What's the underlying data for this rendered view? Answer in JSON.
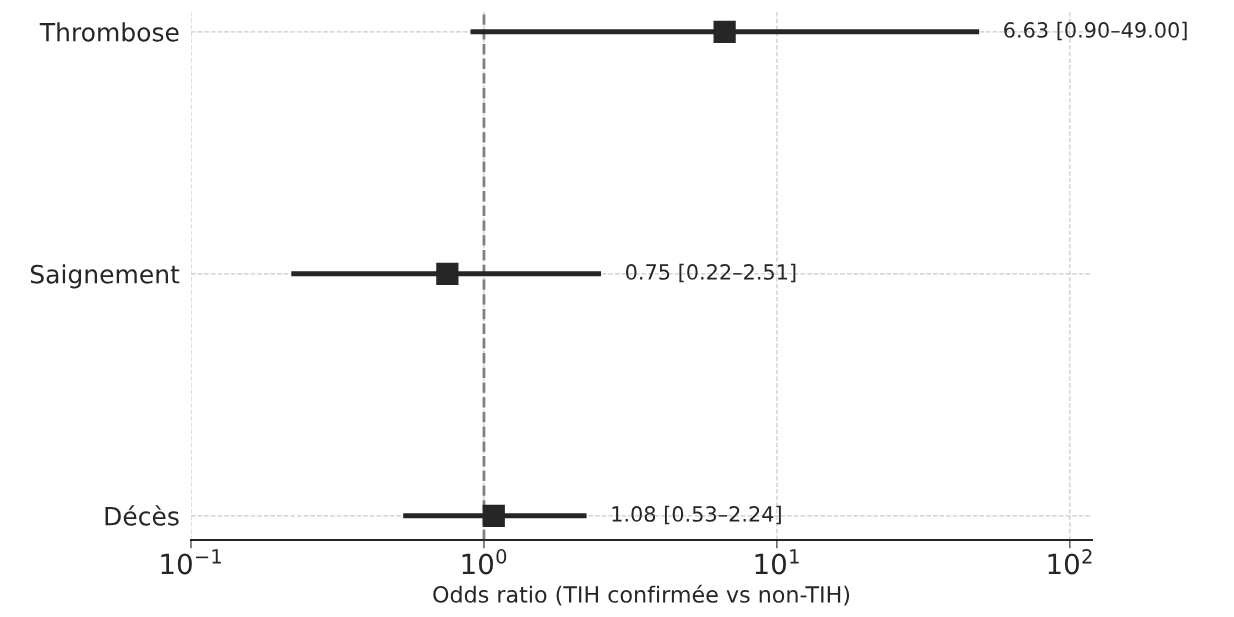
{
  "chart_data": {
    "type": "scatter",
    "orientation": "horizontal",
    "xlabel": "Odds ratio (TIH confirmée vs non-TIH)",
    "categories": [
      "Thrombose",
      "Saignement",
      "Décès"
    ],
    "values": [
      6.63,
      0.75,
      1.08
    ],
    "errors": [
      [
        0.9,
        49.0
      ],
      [
        0.22,
        2.51
      ],
      [
        0.53,
        2.24
      ]
    ],
    "annotations": [
      {
        "text": "6.63 [0.90–49.00]",
        "x": 49.0,
        "y": "Thrombose"
      },
      {
        "text": "0.75 [0.22–2.51]",
        "x": 2.51,
        "y": "Saignement"
      },
      {
        "text": "1.08 [0.53–2.24]",
        "x": 2.24,
        "y": "Décès"
      }
    ],
    "color": "#262626",
    "marker": "square",
    "log": "x",
    "xlim": [
      0.1,
      119
    ],
    "xticks": [
      {
        "value": 0.1,
        "label": "10$^{−1}$"
      },
      {
        "value": 1,
        "label": "10$^{0}$"
      },
      {
        "value": 10,
        "label": "10$^{1}$"
      },
      {
        "value": 100,
        "label": "10$^{2}$"
      }
    ],
    "ref_lines": [
      {
        "axis": "x",
        "value": 1,
        "color": "#808080",
        "line_style": "dashed"
      }
    ],
    "grid": true
  }
}
